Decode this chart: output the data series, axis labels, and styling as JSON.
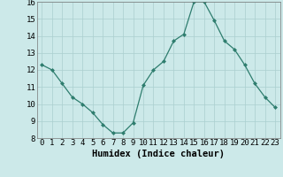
{
  "x": [
    0,
    1,
    2,
    3,
    4,
    5,
    6,
    7,
    8,
    9,
    10,
    11,
    12,
    13,
    14,
    15,
    16,
    17,
    18,
    19,
    20,
    21,
    22,
    23
  ],
  "y": [
    12.3,
    12.0,
    11.2,
    10.4,
    10.0,
    9.5,
    8.8,
    8.3,
    8.3,
    8.9,
    11.1,
    12.0,
    12.5,
    13.7,
    14.1,
    16.0,
    16.0,
    14.9,
    13.7,
    13.2,
    12.3,
    11.2,
    10.4,
    9.8
  ],
  "xlabel": "Humidex (Indice chaleur)",
  "ylim": [
    8,
    16
  ],
  "yticks": [
    8,
    9,
    10,
    11,
    12,
    13,
    14,
    15,
    16
  ],
  "xticks": [
    0,
    1,
    2,
    3,
    4,
    5,
    6,
    7,
    8,
    9,
    10,
    11,
    12,
    13,
    14,
    15,
    16,
    17,
    18,
    19,
    20,
    21,
    22,
    23
  ],
  "line_color": "#2e7d6e",
  "marker": "D",
  "marker_size": 2.0,
  "background_color": "#cce9e9",
  "grid_color": "#aacfcf",
  "xlabel_fontsize": 7.5,
  "tick_fontsize": 6.5
}
